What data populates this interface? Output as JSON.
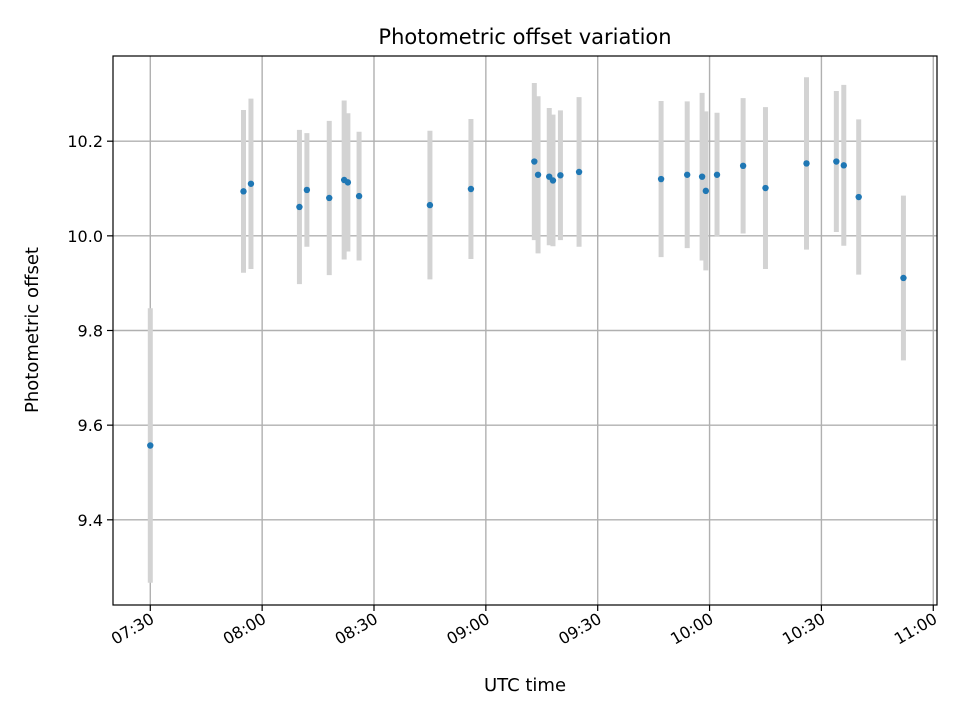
{
  "colors": {
    "point": "#1f77b4",
    "error_bar": "#d3d3d3",
    "grid": "#b0b0b0",
    "axes": "#000000"
  },
  "chart_data": {
    "type": "scatter",
    "title": "Photometric offset variation",
    "xlabel": "UTC time",
    "ylabel": "Photometric offset",
    "grid": true,
    "x_ticks": [
      "07:30",
      "08:00",
      "08:30",
      "09:00",
      "09:30",
      "10:00",
      "10:30",
      "11:00"
    ],
    "y_ticks": [
      "9.4",
      "9.6",
      "9.8",
      "10.0",
      "10.2"
    ],
    "xlim": [
      "07:20",
      "11:01"
    ],
    "ylim": [
      9.22,
      10.38
    ],
    "series": [
      {
        "marker": "point",
        "error_bars": "symmetric",
        "points": [
          {
            "x": "07:30",
            "y": 9.557,
            "err": 0.29
          },
          {
            "x": "07:55",
            "y": 10.094,
            "err": 0.172
          },
          {
            "x": "07:57",
            "y": 10.11,
            "err": 0.18
          },
          {
            "x": "08:10",
            "y": 10.061,
            "err": 0.163
          },
          {
            "x": "08:12",
            "y": 10.097,
            "err": 0.12
          },
          {
            "x": "08:18",
            "y": 10.08,
            "err": 0.163
          },
          {
            "x": "08:22",
            "y": 10.118,
            "err": 0.168
          },
          {
            "x": "08:23",
            "y": 10.113,
            "err": 0.146
          },
          {
            "x": "08:26",
            "y": 10.084,
            "err": 0.136
          },
          {
            "x": "08:45",
            "y": 10.065,
            "err": 0.157
          },
          {
            "x": "08:56",
            "y": 10.099,
            "err": 0.148
          },
          {
            "x": "09:13",
            "y": 10.157,
            "err": 0.166
          },
          {
            "x": "09:14",
            "y": 10.129,
            "err": 0.166
          },
          {
            "x": "09:17",
            "y": 10.125,
            "err": 0.145
          },
          {
            "x": "09:18",
            "y": 10.117,
            "err": 0.139
          },
          {
            "x": "09:20",
            "y": 10.128,
            "err": 0.137
          },
          {
            "x": "09:25",
            "y": 10.135,
            "err": 0.158
          },
          {
            "x": "09:47",
            "y": 10.12,
            "err": 0.165
          },
          {
            "x": "09:54",
            "y": 10.129,
            "err": 0.155
          },
          {
            "x": "09:58",
            "y": 10.125,
            "err": 0.177
          },
          {
            "x": "09:59",
            "y": 10.095,
            "err": 0.168
          },
          {
            "x": "10:02",
            "y": 10.129,
            "err": 0.131
          },
          {
            "x": "10:09",
            "y": 10.148,
            "err": 0.143
          },
          {
            "x": "10:15",
            "y": 10.101,
            "err": 0.171
          },
          {
            "x": "10:26",
            "y": 10.153,
            "err": 0.182
          },
          {
            "x": "10:34",
            "y": 10.157,
            "err": 0.149
          },
          {
            "x": "10:36",
            "y": 10.149,
            "err": 0.17
          },
          {
            "x": "10:40",
            "y": 10.082,
            "err": 0.164
          },
          {
            "x": "10:52",
            "y": 9.911,
            "err": 0.174
          }
        ]
      }
    ]
  }
}
